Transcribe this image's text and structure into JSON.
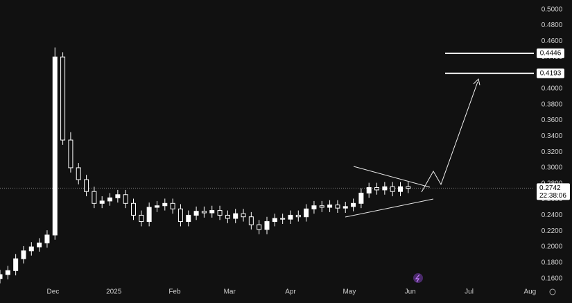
{
  "chart_data": {
    "type": "candlestick",
    "color": "#ffffff",
    "background": "#111111",
    "x": [
      0,
      4,
      8,
      12,
      16,
      20,
      24,
      28,
      32,
      36,
      40,
      44,
      48,
      52,
      56,
      60,
      64,
      68,
      72,
      76,
      80,
      84,
      88,
      92,
      96,
      100,
      104,
      108,
      112,
      116,
      120,
      124,
      128,
      132,
      136,
      140,
      144,
      148,
      152,
      156,
      160,
      164,
      168,
      172,
      176,
      180,
      184,
      188,
      192,
      196,
      200,
      204,
      208
    ],
    "open": [
      0.16,
      0.165,
      0.17,
      0.185,
      0.195,
      0.2,
      0.205,
      0.215,
      0.44,
      0.335,
      0.3,
      0.285,
      0.27,
      0.255,
      0.258,
      0.262,
      0.266,
      0.255,
      0.24,
      0.232,
      0.25,
      0.252,
      0.255,
      0.248,
      0.232,
      0.24,
      0.245,
      0.243,
      0.246,
      0.24,
      0.236,
      0.242,
      0.238,
      0.228,
      0.222,
      0.232,
      0.236,
      0.235,
      0.24,
      0.238,
      0.248,
      0.252,
      0.25,
      0.253,
      0.249,
      0.251,
      0.255,
      0.268,
      0.275,
      0.272,
      0.276,
      0.27,
      0.276
    ],
    "high": [
      0.171,
      0.176,
      0.191,
      0.201,
      0.206,
      0.211,
      0.221,
      0.452,
      0.446,
      0.345,
      0.306,
      0.291,
      0.276,
      0.264,
      0.268,
      0.272,
      0.272,
      0.261,
      0.246,
      0.256,
      0.258,
      0.261,
      0.261,
      0.254,
      0.246,
      0.251,
      0.251,
      0.252,
      0.252,
      0.246,
      0.248,
      0.248,
      0.244,
      0.234,
      0.238,
      0.242,
      0.242,
      0.246,
      0.246,
      0.254,
      0.258,
      0.258,
      0.259,
      0.259,
      0.257,
      0.261,
      0.274,
      0.281,
      0.281,
      0.282,
      0.282,
      0.282,
      0.282
    ],
    "low": [
      0.154,
      0.159,
      0.164,
      0.179,
      0.189,
      0.194,
      0.199,
      0.209,
      0.329,
      0.294,
      0.279,
      0.264,
      0.249,
      0.249,
      0.252,
      0.256,
      0.249,
      0.234,
      0.226,
      0.226,
      0.244,
      0.246,
      0.242,
      0.226,
      0.226,
      0.234,
      0.237,
      0.237,
      0.234,
      0.23,
      0.23,
      0.232,
      0.222,
      0.216,
      0.216,
      0.226,
      0.229,
      0.229,
      0.232,
      0.232,
      0.242,
      0.244,
      0.244,
      0.243,
      0.243,
      0.245,
      0.249,
      0.262,
      0.266,
      0.266,
      0.264,
      0.264,
      0.268
    ],
    "close": [
      0.165,
      0.17,
      0.185,
      0.195,
      0.2,
      0.205,
      0.215,
      0.44,
      0.335,
      0.3,
      0.285,
      0.27,
      0.255,
      0.258,
      0.262,
      0.266,
      0.255,
      0.24,
      0.232,
      0.25,
      0.252,
      0.255,
      0.248,
      0.232,
      0.24,
      0.245,
      0.243,
      0.246,
      0.24,
      0.236,
      0.242,
      0.238,
      0.228,
      0.222,
      0.232,
      0.236,
      0.235,
      0.24,
      0.238,
      0.248,
      0.252,
      0.25,
      0.253,
      0.249,
      0.251,
      0.255,
      0.268,
      0.275,
      0.272,
      0.276,
      0.27,
      0.276,
      0.274
    ],
    "xlim": [
      0,
      272
    ],
    "ylim": [
      0.151,
      0.512
    ],
    "xticks": [
      {
        "value": 27,
        "label": "Dec"
      },
      {
        "value": 58,
        "label": "2025"
      },
      {
        "value": 89,
        "label": "Feb"
      },
      {
        "value": 117,
        "label": "Mar"
      },
      {
        "value": 148,
        "label": "Apr"
      },
      {
        "value": 178,
        "label": "May"
      },
      {
        "value": 209,
        "label": "Jun"
      },
      {
        "value": 239,
        "label": "Jul"
      },
      {
        "value": 270,
        "label": "Aug"
      }
    ],
    "yticks": [
      {
        "value": 0.16,
        "label": "0.1600"
      },
      {
        "value": 0.18,
        "label": "0.1800"
      },
      {
        "value": 0.2,
        "label": "0.2000"
      },
      {
        "value": 0.22,
        "label": "0.2200"
      },
      {
        "value": 0.24,
        "label": "0.2400"
      },
      {
        "value": 0.26,
        "label": "0.2600"
      },
      {
        "value": 0.28,
        "label": "0.2800"
      },
      {
        "value": 0.3,
        "label": "0.3000"
      },
      {
        "value": 0.32,
        "label": "0.3200"
      },
      {
        "value": 0.34,
        "label": "0.3400"
      },
      {
        "value": 0.36,
        "label": "0.3600"
      },
      {
        "value": 0.38,
        "label": "0.3800"
      },
      {
        "value": 0.4,
        "label": "0.4000"
      },
      {
        "value": 0.42,
        "label": "0.4200"
      },
      {
        "value": 0.44,
        "label": "0.4400"
      },
      {
        "value": 0.46,
        "label": "0.4600"
      },
      {
        "value": 0.48,
        "label": "0.4800"
      },
      {
        "value": 0.5,
        "label": "0.5000"
      }
    ],
    "levels": [
      0.4446,
      0.4193
    ],
    "last_price": 0.2742,
    "countdown": "22:38:06"
  }
}
